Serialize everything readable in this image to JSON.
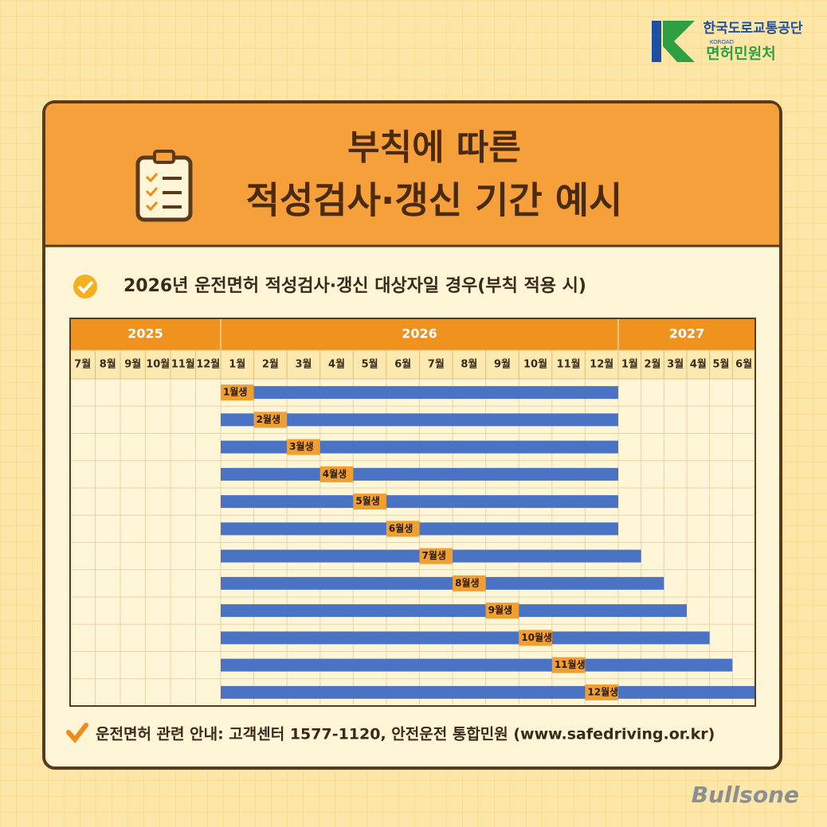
{
  "logo": {
    "org": "한국도로교통공단",
    "en": "KOROAD",
    "dept": "면허민원처"
  },
  "header": {
    "title_line1": "부칙에 따른",
    "title_line2": "적성검사·갱신 기간 예시"
  },
  "subtitle": "2026년 운전면허 적성검사·갱신 대상자일 경우(부칙 적용 시)",
  "chart_data": {
    "type": "gantt",
    "year_groups": [
      {
        "year": "2025",
        "months": [
          "7월",
          "8월",
          "9월",
          "10월",
          "11월",
          "12월"
        ]
      },
      {
        "year": "2026",
        "months": [
          "1월",
          "2월",
          "3월",
          "4월",
          "5월",
          "6월",
          "7월",
          "8월",
          "9월",
          "10월",
          "11월",
          "12월"
        ]
      },
      {
        "year": "2027",
        "months": [
          "1월",
          "2월",
          "3월",
          "4월",
          "5월",
          "6월"
        ]
      }
    ],
    "bar_color": "#4a73c4",
    "label_color": "#f0a030",
    "bars": [
      {
        "name": "1월생",
        "label_at": "2026-01",
        "start": "2026-01",
        "end": "2026-12"
      },
      {
        "name": "2월생",
        "label_at": "2026-02",
        "start": "2026-01",
        "end": "2026-12"
      },
      {
        "name": "3월생",
        "label_at": "2026-03",
        "start": "2026-01",
        "end": "2026-12"
      },
      {
        "name": "4월생",
        "label_at": "2026-04",
        "start": "2026-01",
        "end": "2026-12"
      },
      {
        "name": "5월생",
        "label_at": "2026-05",
        "start": "2026-01",
        "end": "2026-12"
      },
      {
        "name": "6월생",
        "label_at": "2026-06",
        "start": "2026-01",
        "end": "2026-12"
      },
      {
        "name": "7월생",
        "label_at": "2026-07",
        "start": "2026-01",
        "end": "2027-01"
      },
      {
        "name": "8월생",
        "label_at": "2026-08",
        "start": "2026-01",
        "end": "2027-02"
      },
      {
        "name": "9월생",
        "label_at": "2026-09",
        "start": "2026-01",
        "end": "2027-03"
      },
      {
        "name": "10월생",
        "label_at": "2026-10",
        "start": "2026-01",
        "end": "2027-04"
      },
      {
        "name": "11월생",
        "label_at": "2026-11",
        "start": "2026-01",
        "end": "2027-05"
      },
      {
        "name": "12월생",
        "label_at": "2026-12",
        "start": "2026-01",
        "end": "2027-06"
      }
    ]
  },
  "footer": "운전면허 관련 안내: 고객센터 1577-1120, 안전운전 통합민원 (www.safedriving.or.kr)",
  "watermark": "Bullsone"
}
